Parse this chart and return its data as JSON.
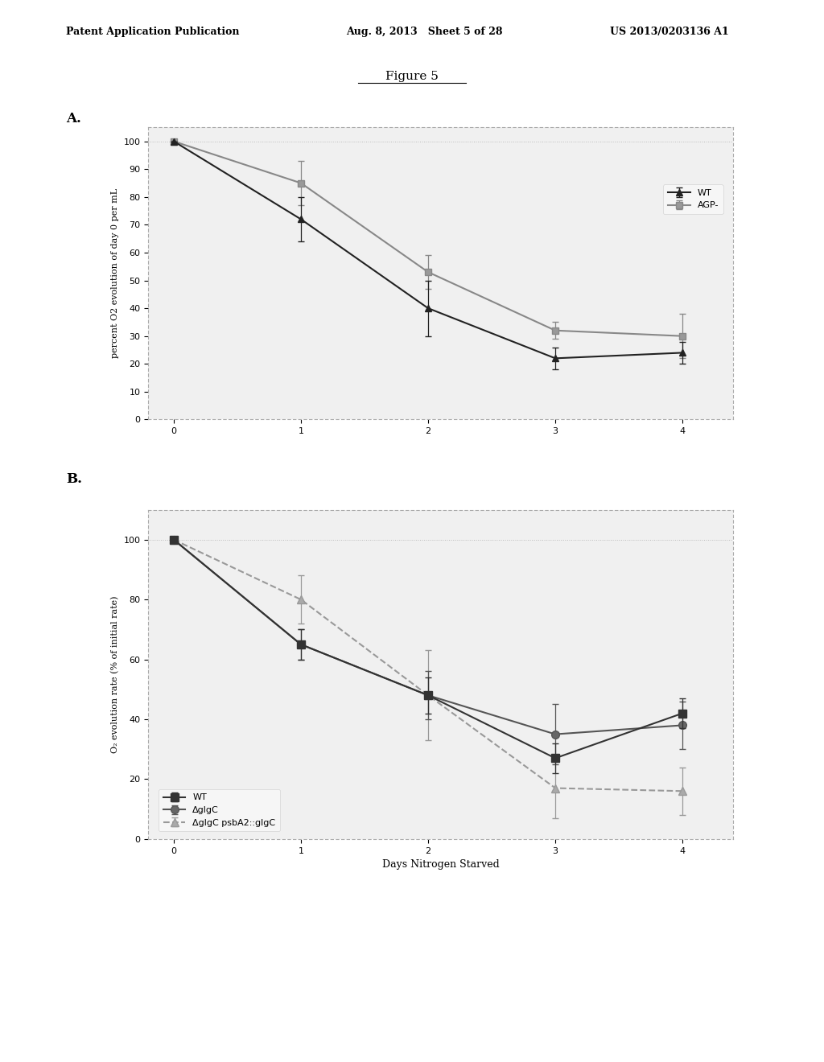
{
  "header_left": "Patent Application Publication",
  "header_mid": "Aug. 8, 2013   Sheet 5 of 28",
  "header_right": "US 2013/0203136 A1",
  "figure_title": "Figure 5",
  "panel_A": {
    "label": "A.",
    "ylabel": "percent O2 evolution of day 0 per mL",
    "xlabel": "",
    "xlim": [
      -0.2,
      4.4
    ],
    "ylim": [
      0,
      105
    ],
    "yticks": [
      0,
      10,
      20,
      30,
      40,
      50,
      60,
      70,
      80,
      90,
      100
    ],
    "xticks": [
      0,
      1,
      2,
      3,
      4
    ],
    "series": {
      "WT": {
        "x": [
          0,
          1,
          2,
          3,
          4
        ],
        "y": [
          100,
          72,
          40,
          22,
          24
        ],
        "yerr": [
          0,
          8,
          10,
          4,
          4
        ],
        "color": "#222222",
        "marker": "^",
        "linestyle": "-",
        "label": "WT"
      },
      "AGP": {
        "x": [
          0,
          1,
          2,
          3,
          4
        ],
        "y": [
          100,
          85,
          53,
          32,
          30
        ],
        "yerr": [
          0,
          8,
          6,
          3,
          8
        ],
        "color": "#888888",
        "marker": "s",
        "linestyle": "-",
        "label": "AGP-"
      }
    }
  },
  "panel_B": {
    "label": "B.",
    "ylabel": "O₂ evolution rate (% of initial rate)",
    "xlabel": "Days Nitrogen Starved",
    "xlim": [
      -0.2,
      4.4
    ],
    "ylim": [
      0,
      110
    ],
    "yticks": [
      0,
      20,
      40,
      60,
      80,
      100
    ],
    "xticks": [
      0,
      1,
      2,
      3,
      4
    ],
    "series": {
      "WT": {
        "x": [
          0,
          1,
          2,
          3,
          4
        ],
        "y": [
          100,
          65,
          48,
          27,
          42
        ],
        "yerr": [
          0,
          5,
          6,
          5,
          5
        ],
        "color": "#333333",
        "marker": "s",
        "linestyle": "-",
        "label": "WT"
      },
      "glgC": {
        "x": [
          0,
          1,
          2,
          3,
          4
        ],
        "y": [
          100,
          65,
          48,
          35,
          38
        ],
        "yerr": [
          0,
          5,
          8,
          10,
          8
        ],
        "color": "#555555",
        "marker": "o",
        "linestyle": "-",
        "label": "ΔglgC"
      },
      "glgC_psbA2": {
        "x": [
          0,
          1,
          2,
          3,
          4
        ],
        "y": [
          100,
          80,
          48,
          17,
          16
        ],
        "yerr": [
          0,
          8,
          15,
          10,
          8
        ],
        "color": "#999999",
        "marker": "^",
        "linestyle": "--",
        "label": "ΔglgC psbA2::glgC"
      }
    }
  },
  "bg_color": "#ffffff",
  "text_color": "#000000"
}
